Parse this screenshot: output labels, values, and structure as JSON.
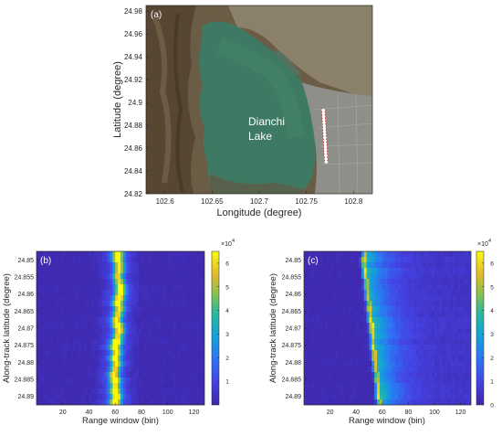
{
  "figure": {
    "panels": [
      {
        "id": "a",
        "tag": "(a)",
        "type": "map",
        "xlabel": "Longitude (degree)",
        "ylabel": "Latitude (degree)",
        "xlim": [
          102.58,
          102.82
        ],
        "ylim": [
          24.82,
          24.985
        ],
        "xticks": [
          "102.6",
          "102.65",
          "102.7",
          "102.75",
          "102.8"
        ],
        "xtick_values": [
          102.6,
          102.65,
          102.7,
          102.75,
          102.8
        ],
        "yticks": [
          "24.98",
          "24.96",
          "24.94",
          "24.92",
          "24.9",
          "24.88",
          "24.86",
          "24.84",
          "24.82"
        ],
        "ytick_values": [
          24.98,
          24.96,
          24.94,
          24.92,
          24.9,
          24.88,
          24.86,
          24.84,
          24.82
        ],
        "annotation": [
          "Dianchi",
          "Lake"
        ],
        "track": {
          "lon_start": 102.768,
          "lat_start": 24.893,
          "lon_end": 102.771,
          "lat_end": 24.848,
          "points": 18,
          "color": "#cc0000"
        }
      }
    ]
  },
  "chart_data": [
    {
      "id": "b",
      "tag": "(b)",
      "type": "heatmap",
      "xlabel": "Range window (bin)",
      "ylabel": "Along-track latitude (degree)",
      "xlim": [
        0,
        128
      ],
      "ylim": [
        24.8475,
        24.8925
      ],
      "xticks": [
        "20",
        "40",
        "60",
        "80",
        "100",
        "120"
      ],
      "xtick_values": [
        20,
        40,
        60,
        80,
        100,
        120
      ],
      "yticks": [
        "24.85",
        "24.855",
        "24.86",
        "24.865",
        "24.87",
        "24.875",
        "24.88",
        "24.885",
        "24.89"
      ],
      "ytick_values": [
        24.85,
        24.855,
        24.86,
        24.865,
        24.87,
        24.875,
        24.88,
        24.885,
        24.89
      ],
      "colorbar": {
        "min": 0,
        "max": 6.5,
        "ticks": [
          "1",
          "2",
          "3",
          "4",
          "5",
          "6"
        ],
        "tick_values": [
          1,
          2,
          3,
          4,
          5,
          6
        ],
        "exponent_base": "×10",
        "exponent_power": "4"
      },
      "peak_bin_by_row": [
        62,
        62,
        63,
        63,
        62,
        63,
        64,
        64,
        63,
        62,
        63,
        62,
        61,
        62,
        63,
        62,
        61,
        60,
        61,
        60,
        61,
        60,
        59,
        60,
        60,
        60,
        61,
        60
      ],
      "peak_intensity": 6.2
    },
    {
      "id": "c",
      "tag": "(c)",
      "type": "heatmap",
      "xlabel": "Range window (bin)",
      "ylabel": "Along-track latitude (degree)",
      "xlim": [
        0,
        128
      ],
      "ylim": [
        24.8475,
        24.8925
      ],
      "xticks": [
        "20",
        "40",
        "60",
        "80",
        "100",
        "120"
      ],
      "xtick_values": [
        20,
        40,
        60,
        80,
        100,
        120
      ],
      "yticks": [
        "24.85",
        "24.855",
        "24.86",
        "24.865",
        "24.87",
        "24.875",
        "24.88",
        "24.885",
        "24.89"
      ],
      "ytick_values": [
        24.85,
        24.855,
        24.86,
        24.865,
        24.87,
        24.875,
        24.88,
        24.885,
        24.89
      ],
      "colorbar": {
        "min": 0,
        "max": 6.5,
        "ticks": [
          "0",
          "1",
          "2",
          "3",
          "4",
          "5",
          "6"
        ],
        "tick_values": [
          0,
          1,
          2,
          3,
          4,
          5,
          6
        ],
        "exponent_base": "×10",
        "exponent_power": "4"
      },
      "peak_bin_by_row": [
        47,
        46,
        46,
        47,
        47,
        48,
        48,
        49,
        49,
        50,
        50,
        51,
        51,
        52,
        52,
        53,
        53,
        53,
        54,
        54,
        55,
        55,
        56,
        56,
        57,
        57,
        57,
        58
      ],
      "peak_intensity": 6.0
    }
  ],
  "colors": {
    "water": "#3e7a63",
    "land_dark": "#5a4a36",
    "land_light": "#8a7d68",
    "urban": "#8e8e88",
    "track_dot": "#ffffff",
    "heat_low": "#3e26a8",
    "heat_high": "#f9fb0e"
  }
}
